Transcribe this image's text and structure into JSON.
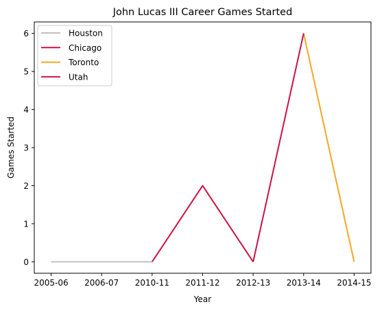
{
  "chart_data": {
    "type": "line",
    "title": "John Lucas III Career Games Started",
    "xlabel": "Year",
    "ylabel": "Games Started",
    "categories": [
      "2005-06",
      "2006-07",
      "2010-11",
      "2011-12",
      "2012-13",
      "2013-14",
      "2014-15"
    ],
    "yticks": [
      0,
      1,
      2,
      3,
      4,
      5,
      6
    ],
    "ylim": [
      -0.3,
      6.3
    ],
    "grid": false,
    "legend_position": "top-left",
    "series": [
      {
        "name": "Houston",
        "color": "#c0c0c0",
        "x": [
          "2005-06",
          "2006-07",
          "2010-11"
        ],
        "values": [
          0,
          0,
          0
        ]
      },
      {
        "name": "Chicago",
        "color": "#ce1141",
        "x": [
          "2010-11",
          "2011-12",
          "2012-13"
        ],
        "values": [
          0,
          2,
          0
        ]
      },
      {
        "name": "Toronto",
        "color": "#f5a623",
        "x": [
          "2013-14",
          "2014-15"
        ],
        "values": [
          6,
          0
        ]
      },
      {
        "name": "Utah",
        "color": "#ce1141",
        "x": [
          "2012-13",
          "2013-14"
        ],
        "values": [
          0,
          6
        ]
      }
    ]
  }
}
